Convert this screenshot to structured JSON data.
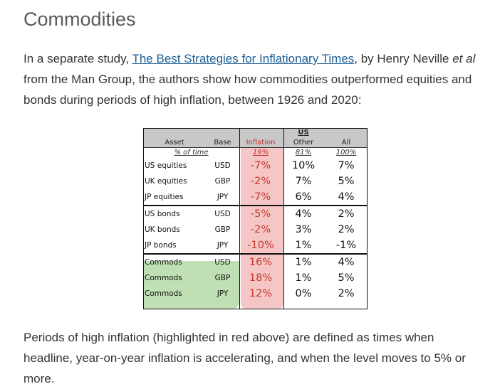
{
  "heading": "Commodities",
  "intro": {
    "before": "In a separate study, ",
    "link_text": "The Best Strategies for Inflationary Times",
    "mid": ", by Henry Neville ",
    "etal": "et al",
    "after": " from the Man Group, the authors show how commodities outperformed equities and bonds during periods of high inflation, between 1926 and 2020:"
  },
  "table": {
    "region_label": "US",
    "headers": [
      "Asset",
      "Base",
      "Inflation",
      "Other",
      "All"
    ],
    "time_share": {
      "label": "% of time",
      "inflation": "19%",
      "other": "81%",
      "all": "100%"
    },
    "rows": [
      {
        "asset": "US equities",
        "base": "USD",
        "inflation": "-7%",
        "other": "10%",
        "all": "7%"
      },
      {
        "asset": "UK equities",
        "base": "GBP",
        "inflation": "-2%",
        "other": "7%",
        "all": "5%"
      },
      {
        "asset": "JP equities",
        "base": "JPY",
        "inflation": "-7%",
        "other": "6%",
        "all": "4%"
      },
      {
        "asset": "US bonds",
        "base": "USD",
        "inflation": "-5%",
        "other": "4%",
        "all": "2%"
      },
      {
        "asset": "UK bonds",
        "base": "GBP",
        "inflation": "-2%",
        "other": "3%",
        "all": "2%"
      },
      {
        "asset": "JP bonds",
        "base": "JPY",
        "inflation": "-10%",
        "other": "1%",
        "all": "-1%"
      },
      {
        "asset": "Commods",
        "base": "USD",
        "inflation": "16%",
        "other": "1%",
        "all": "4%"
      },
      {
        "asset": "Commods",
        "base": "GBP",
        "inflation": "18%",
        "other": "1%",
        "all": "5%"
      },
      {
        "asset": "Commods",
        "base": "JPY",
        "inflation": "12%",
        "other": "0%",
        "all": "2%"
      }
    ],
    "colors": {
      "inflation_highlight": "#f6c6c6",
      "commodities_highlight": "#bfe0b4",
      "header_bg": "#c8c8c8"
    }
  },
  "footer": "Periods of high inflation (highlighted in red above) are defined as times when headline, year-on-year inflation is accelerating, and when the level moves to 5% or more."
}
